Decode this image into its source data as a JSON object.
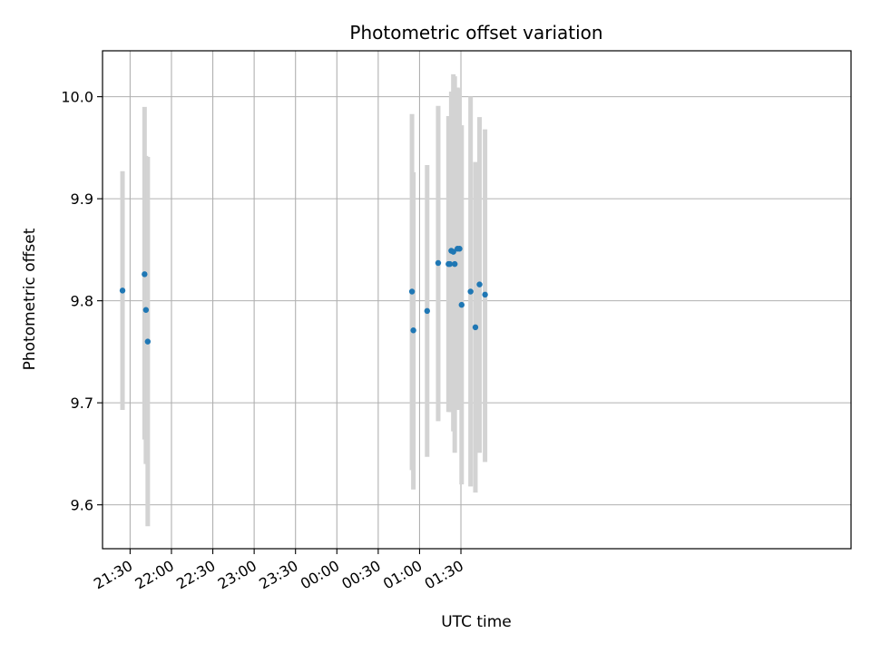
{
  "chart_data": {
    "type": "scatter",
    "title": "Photometric offset variation",
    "xlabel": "UTC time",
    "ylabel": "Photometric offset",
    "grid": true,
    "x_unit": "minutes",
    "xlim": [
      1270,
      1813
    ],
    "ylim": [
      9.557,
      10.045
    ],
    "x_ticks": [
      {
        "value": 1290,
        "label": "21:30"
      },
      {
        "value": 1320,
        "label": "22:00"
      },
      {
        "value": 1350,
        "label": "22:30"
      },
      {
        "value": 1380,
        "label": "23:00"
      },
      {
        "value": 1410,
        "label": "23:30"
      },
      {
        "value": 1440,
        "label": "00:00"
      },
      {
        "value": 1470,
        "label": "00:30"
      },
      {
        "value": 1500,
        "label": "01:00"
      },
      {
        "value": 1530,
        "label": "01:30"
      }
    ],
    "y_ticks": [
      {
        "value": 9.6,
        "label": "9.6"
      },
      {
        "value": 9.7,
        "label": "9.7"
      },
      {
        "value": 9.8,
        "label": "9.8"
      },
      {
        "value": 9.9,
        "label": "9.9"
      },
      {
        "value": 10.0,
        "label": "10.0"
      }
    ],
    "points_color": "#1f77b4",
    "errorbar_color": "#d3d3d3",
    "points": [
      {
        "x": 1284.5,
        "y": 9.81,
        "lo": 9.693,
        "hi": 9.927
      },
      {
        "x": 1300.5,
        "y": 9.826,
        "lo": 9.664,
        "hi": 9.99
      },
      {
        "x": 1301.5,
        "y": 9.791,
        "lo": 9.64,
        "hi": 9.942
      },
      {
        "x": 1302.8,
        "y": 9.76,
        "lo": 9.579,
        "hi": 9.941
      },
      {
        "x": 1494.5,
        "y": 9.809,
        "lo": 9.634,
        "hi": 9.983
      },
      {
        "x": 1495.5,
        "y": 9.771,
        "lo": 9.615,
        "hi": 9.926
      },
      {
        "x": 1505.5,
        "y": 9.79,
        "lo": 9.647,
        "hi": 9.933
      },
      {
        "x": 1513.5,
        "y": 9.837,
        "lo": 9.682,
        "hi": 9.991
      },
      {
        "x": 1521.0,
        "y": 9.836,
        "lo": 9.691,
        "hi": 9.981
      },
      {
        "x": 1522.0,
        "y": 9.836,
        "lo": 9.691,
        "hi": 9.981
      },
      {
        "x": 1523.0,
        "y": 9.849,
        "lo": 9.691,
        "hi": 10.005
      },
      {
        "x": 1524.5,
        "y": 9.848,
        "lo": 9.672,
        "hi": 10.022
      },
      {
        "x": 1525.5,
        "y": 9.836,
        "lo": 9.651,
        "hi": 10.02
      },
      {
        "x": 1527.5,
        "y": 9.851,
        "lo": 9.693,
        "hi": 10.009
      },
      {
        "x": 1529.0,
        "y": 9.851,
        "lo": 9.695,
        "hi": 10.008
      },
      {
        "x": 1530.5,
        "y": 9.796,
        "lo": 9.62,
        "hi": 9.972
      },
      {
        "x": 1537.0,
        "y": 9.809,
        "lo": 9.618,
        "hi": 10.0
      },
      {
        "x": 1540.5,
        "y": 9.774,
        "lo": 9.612,
        "hi": 9.936
      },
      {
        "x": 1543.5,
        "y": 9.816,
        "lo": 9.651,
        "hi": 9.98
      },
      {
        "x": 1547.5,
        "y": 9.806,
        "lo": 9.642,
        "hi": 9.968
      }
    ]
  }
}
